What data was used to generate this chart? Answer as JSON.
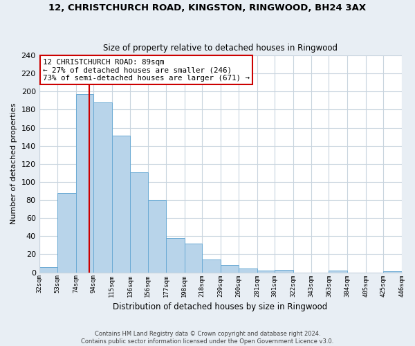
{
  "title": "12, CHRISTCHURCH ROAD, KINGSTON, RINGWOOD, BH24 3AX",
  "subtitle": "Size of property relative to detached houses in Ringwood",
  "xlabel": "Distribution of detached houses by size in Ringwood",
  "ylabel": "Number of detached properties",
  "bin_edges": [
    32,
    53,
    74,
    94,
    115,
    136,
    156,
    177,
    198,
    218,
    239,
    260,
    281,
    301,
    322,
    343,
    363,
    384,
    405,
    425,
    446
  ],
  "bin_counts": [
    6,
    88,
    197,
    188,
    151,
    111,
    80,
    38,
    32,
    14,
    8,
    4,
    2,
    3,
    0,
    0,
    2,
    0,
    0,
    1
  ],
  "bar_color": "#b8d4ea",
  "bar_edge_color": "#6aaad4",
  "property_size": 89,
  "vline_color": "#cc0000",
  "annotation_line1": "12 CHRISTCHURCH ROAD: 89sqm",
  "annotation_line2": "← 27% of detached houses are smaller (246)",
  "annotation_line3": "73% of semi-detached houses are larger (671) →",
  "annotation_box_color": "white",
  "annotation_box_edge": "#cc0000",
  "ylim": [
    0,
    240
  ],
  "yticks": [
    0,
    20,
    40,
    60,
    80,
    100,
    120,
    140,
    160,
    180,
    200,
    220,
    240
  ],
  "tick_labels": [
    "32sqm",
    "53sqm",
    "74sqm",
    "94sqm",
    "115sqm",
    "136sqm",
    "156sqm",
    "177sqm",
    "198sqm",
    "218sqm",
    "239sqm",
    "260sqm",
    "281sqm",
    "301sqm",
    "322sqm",
    "343sqm",
    "363sqm",
    "384sqm",
    "405sqm",
    "425sqm",
    "446sqm"
  ],
  "footer_text": "Contains HM Land Registry data © Crown copyright and database right 2024.\nContains public sector information licensed under the Open Government Licence v3.0.",
  "bg_color": "#e8eef4",
  "plot_bg_color": "white",
  "grid_color": "#c8d4de"
}
